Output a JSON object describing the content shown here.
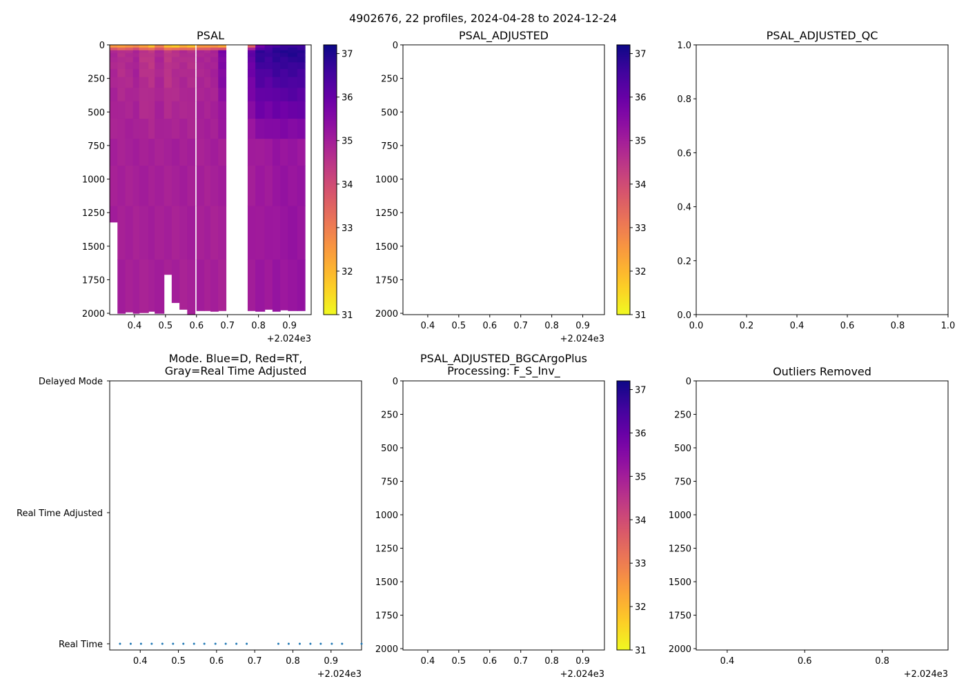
{
  "figure_title": "4902676, 22 profiles, 2024-04-28 to 2024-12-24",
  "x_offset_label": "+2.024e3",
  "time_ticks": [
    "0.4",
    "0.5",
    "0.6",
    "0.7",
    "0.8",
    "0.9"
  ],
  "time_ticks_outliers": [
    "0.4",
    "0.6",
    "0.8"
  ],
  "depth_ticks": [
    "0",
    "250",
    "500",
    "750",
    "1000",
    "1250",
    "1500",
    "1750",
    "2000"
  ],
  "qc_ticks": [
    "0.0",
    "0.2",
    "0.4",
    "0.6",
    "0.8",
    "1.0"
  ],
  "colorbar_ticks": [
    "31",
    "32",
    "33",
    "34",
    "35",
    "36",
    "37"
  ],
  "colors": {
    "mode_marker": "#1f77b4",
    "colormap": "plasma_r"
  },
  "chart_data": [
    {
      "id": "psal",
      "type": "heatmap",
      "title": "PSAL",
      "xlabel": "",
      "ylabel": "",
      "xlim": [
        0.32,
        0.97
      ],
      "ylim": [
        2010,
        0
      ],
      "clim": [
        31,
        37.2
      ],
      "colorbar": true,
      "profiles": [
        {
          "t0": 0.32,
          "t1": 0.345,
          "surface": 32.6,
          "subsurface": 34.8,
          "deep": 34.95,
          "max_depth": 1320
        },
        {
          "t0": 0.345,
          "t1": 0.37,
          "surface": 32.4,
          "subsurface": 34.6,
          "deep": 34.95,
          "max_depth": 2000
        },
        {
          "t0": 0.37,
          "t1": 0.395,
          "surface": 32.5,
          "subsurface": 34.7,
          "deep": 34.95,
          "max_depth": 1990
        },
        {
          "t0": 0.395,
          "t1": 0.415,
          "surface": 32.8,
          "subsurface": 34.9,
          "deep": 34.95,
          "max_depth": 2000
        },
        {
          "t0": 0.415,
          "t1": 0.445,
          "surface": 32.3,
          "subsurface": 34.5,
          "deep": 34.95,
          "max_depth": 1995
        },
        {
          "t0": 0.445,
          "t1": 0.465,
          "surface": 31.9,
          "subsurface": 34.4,
          "deep": 34.95,
          "max_depth": 1985
        },
        {
          "t0": 0.465,
          "t1": 0.495,
          "surface": 32.9,
          "subsurface": 34.8,
          "deep": 34.95,
          "max_depth": 2000
        },
        {
          "t0": 0.495,
          "t1": 0.52,
          "surface": 31.8,
          "subsurface": 34.4,
          "deep": 34.95,
          "max_depth": 1710
        },
        {
          "t0": 0.52,
          "t1": 0.545,
          "surface": 31.7,
          "subsurface": 34.6,
          "deep": 34.95,
          "max_depth": 1920
        },
        {
          "t0": 0.545,
          "t1": 0.57,
          "surface": 32.1,
          "subsurface": 34.7,
          "deep": 34.95,
          "max_depth": 1970
        },
        {
          "t0": 0.57,
          "t1": 0.595,
          "surface": 31.9,
          "subsurface": 34.6,
          "deep": 34.95,
          "max_depth": 2010
        },
        {
          "t0": 0.6,
          "t1": 0.625,
          "surface": 32.5,
          "subsurface": 34.8,
          "deep": 34.95,
          "max_depth": 1980
        },
        {
          "t0": 0.625,
          "t1": 0.645,
          "surface": 32.4,
          "subsurface": 34.8,
          "deep": 34.95,
          "max_depth": 1980
        },
        {
          "t0": 0.645,
          "t1": 0.67,
          "surface": 32.6,
          "subsurface": 34.9,
          "deep": 34.95,
          "max_depth": 1985
        },
        {
          "t0": 0.67,
          "t1": 0.695,
          "surface": 32.2,
          "subsurface": 35.7,
          "deep": 34.95,
          "max_depth": 1980
        },
        {
          "t0": 0.765,
          "t1": 0.79,
          "surface": 33.6,
          "subsurface": 36.1,
          "deep": 35.0,
          "max_depth": 1980
        },
        {
          "t0": 0.79,
          "t1": 0.82,
          "surface": 35.8,
          "subsurface": 36.8,
          "deep": 35.1,
          "max_depth": 1985
        },
        {
          "t0": 0.82,
          "t1": 0.845,
          "surface": 36.2,
          "subsurface": 36.7,
          "deep": 35.1,
          "max_depth": 1970
        },
        {
          "t0": 0.845,
          "t1": 0.87,
          "surface": 36.5,
          "subsurface": 36.9,
          "deep": 35.2,
          "max_depth": 1985
        },
        {
          "t0": 0.87,
          "t1": 0.895,
          "surface": 36.6,
          "subsurface": 36.9,
          "deep": 35.2,
          "max_depth": 1975
        },
        {
          "t0": 0.895,
          "t1": 0.925,
          "surface": 36.7,
          "subsurface": 36.95,
          "deep": 35.2,
          "max_depth": 1980
        },
        {
          "t0": 0.925,
          "t1": 0.95,
          "surface": 36.6,
          "subsurface": 36.9,
          "deep": 35.2,
          "max_depth": 1980
        }
      ]
    },
    {
      "id": "psal_adjusted",
      "type": "heatmap",
      "title": "PSAL_ADJUSTED",
      "xlim": [
        0.32,
        0.97
      ],
      "ylim": [
        2010,
        0
      ],
      "clim": [
        31,
        37.2
      ],
      "colorbar": true,
      "profiles": []
    },
    {
      "id": "psal_adjusted_qc",
      "type": "scatter",
      "title": "PSAL_ADJUSTED_QC",
      "xlim": [
        0.0,
        1.0
      ],
      "ylim": [
        0.0,
        1.0
      ],
      "points": []
    },
    {
      "id": "mode",
      "type": "scatter",
      "title_line1": "Mode. Blue=D, Red=RT,",
      "title_line2": "Gray=Real Time Adjusted",
      "xlim": [
        0.32,
        0.98
      ],
      "categories": [
        "Real Time",
        "Real Time Adjusted",
        "Delayed Mode"
      ],
      "points_x": [
        0.347,
        0.375,
        0.402,
        0.43,
        0.458,
        0.486,
        0.513,
        0.541,
        0.568,
        0.597,
        0.624,
        0.652,
        0.679,
        0.762,
        0.789,
        0.818,
        0.846,
        0.873,
        0.902,
        0.929,
        0.98
      ],
      "points_mode": "Real Time"
    },
    {
      "id": "psal_bgc",
      "type": "heatmap",
      "title_line1": "PSAL_ADJUSTED_BGCArgoPlus",
      "title_line2": "Processing: F_S_Inv_",
      "xlim": [
        0.32,
        0.97
      ],
      "ylim": [
        2010,
        0
      ],
      "clim": [
        31,
        37.2
      ],
      "colorbar": true,
      "profiles": []
    },
    {
      "id": "outliers",
      "type": "scatter",
      "title": "Outliers Removed",
      "xlim": [
        0.32,
        0.97
      ],
      "ylim": [
        2010,
        0
      ],
      "points": []
    }
  ]
}
